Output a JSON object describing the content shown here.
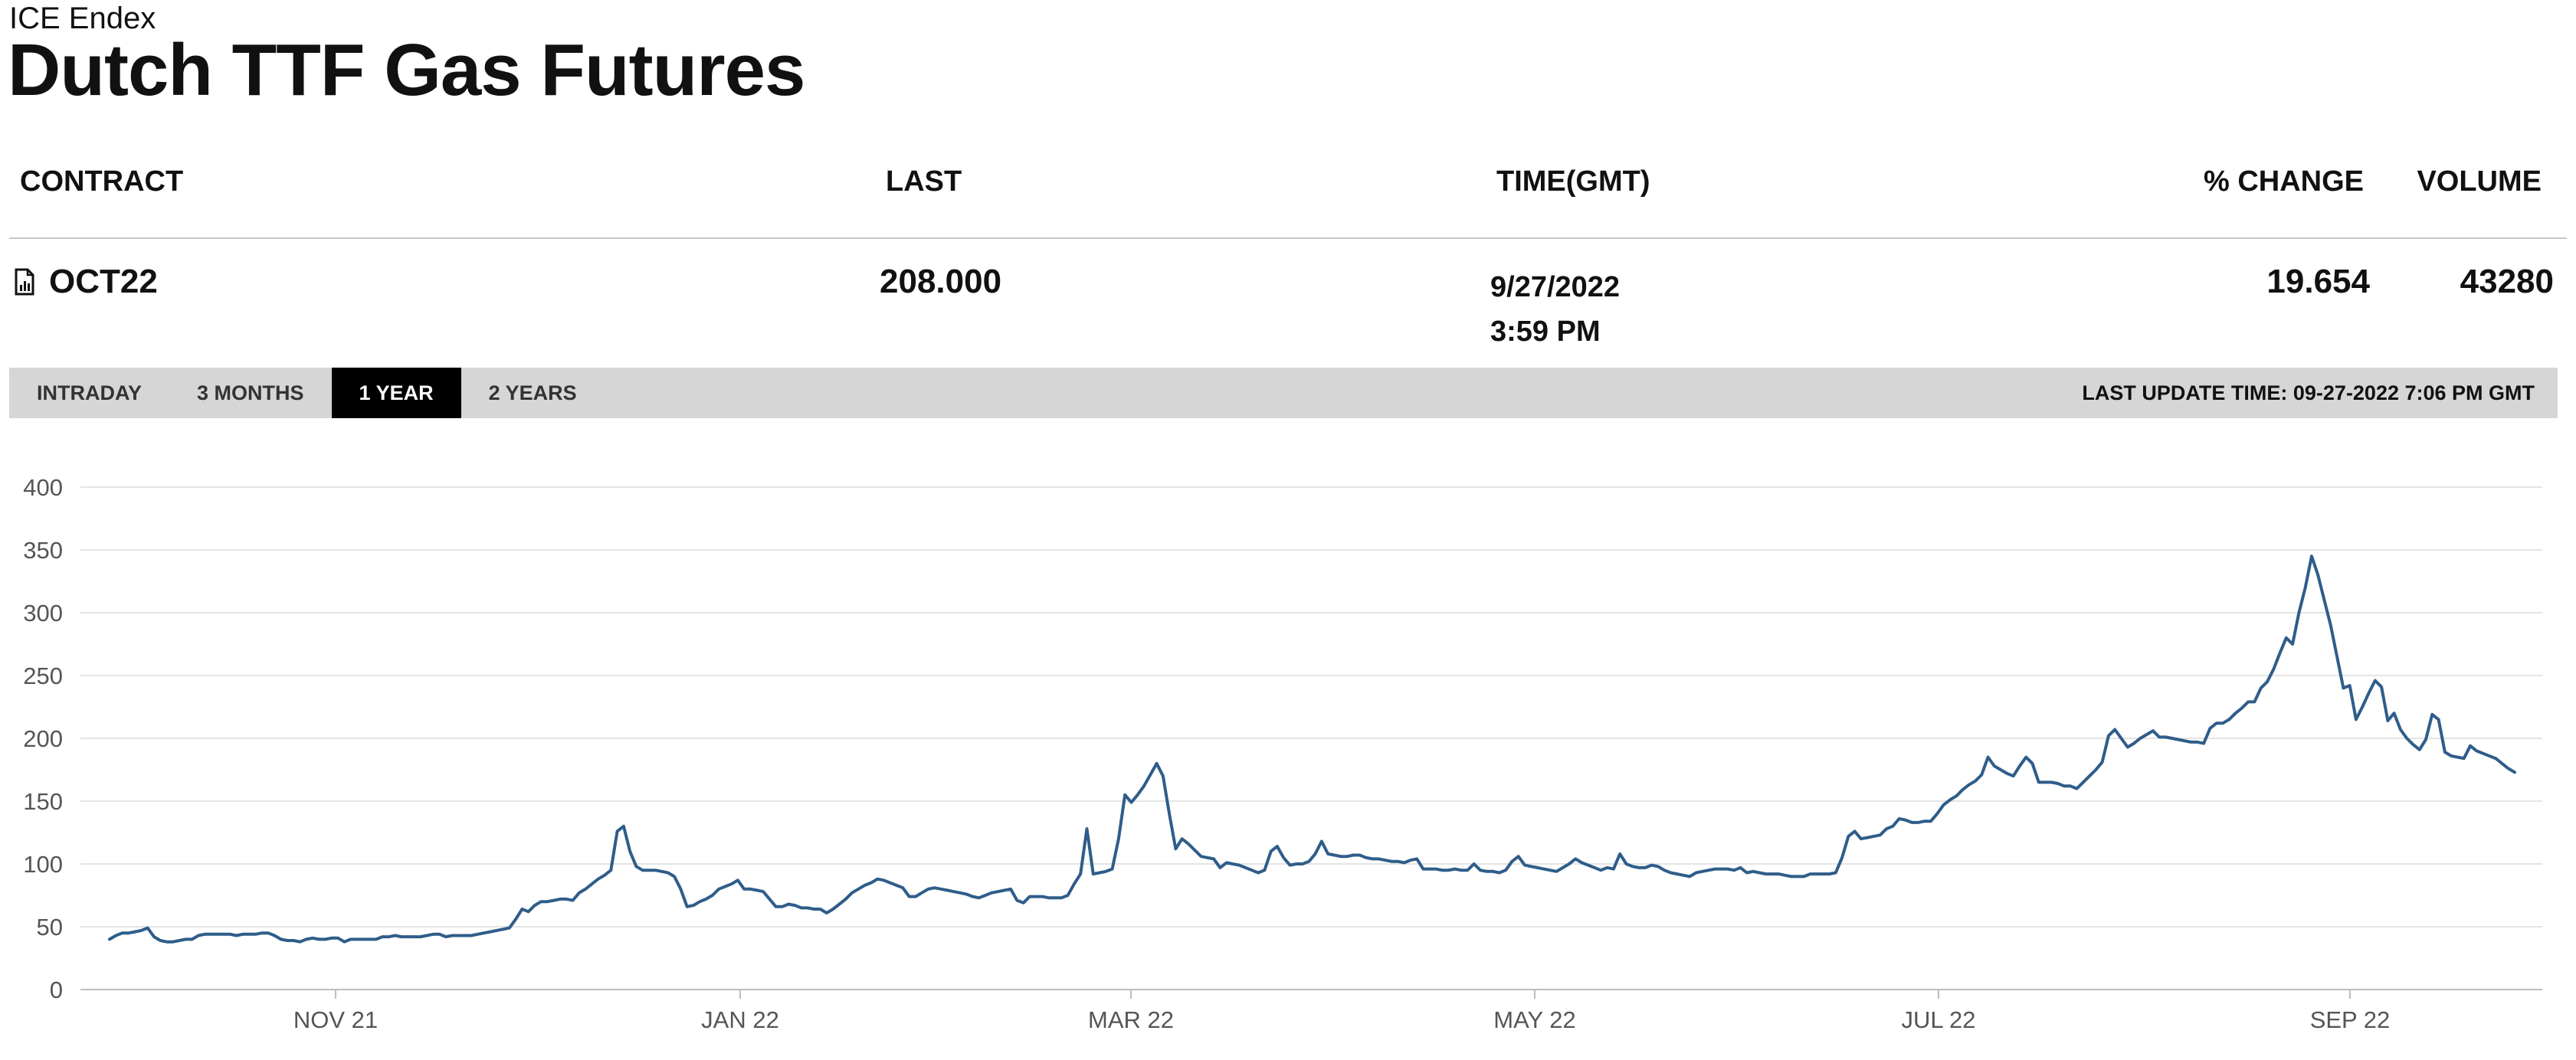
{
  "header": {
    "exchange": "ICE Endex",
    "title": "Dutch TTF Gas Futures"
  },
  "table": {
    "columns": {
      "contract": "CONTRACT",
      "last": "LAST",
      "time": "TIME(GMT)",
      "pct_change": "% CHANGE",
      "volume": "VOLUME"
    },
    "row": {
      "contract_icon": "chart-document-icon",
      "contract": "OCT22",
      "last": "208.000",
      "date": "9/27/2022",
      "time": "3:59 PM",
      "pct_change": "19.654",
      "volume": "43280"
    }
  },
  "tabs": {
    "intraday": "INTRADAY",
    "three_months": "3 MONTHS",
    "one_year": "1 YEAR",
    "two_years": "2 YEARS",
    "active": "1 YEAR"
  },
  "last_update": "LAST UPDATE TIME: 09-27-2022 7:06 PM GMT",
  "colors": {
    "line": "#2f5d8a",
    "grid": "#e4e4e4",
    "tabbar": "#d6d6d6",
    "active_tab": "#000000"
  },
  "chart_data": {
    "type": "line",
    "x_ticks": [
      "NOV 21",
      "JAN 22",
      "MAR 22",
      "MAY 22",
      "JUL 22",
      "SEP 22"
    ],
    "y_ticks": [
      0,
      50,
      100,
      150,
      200,
      250,
      300,
      350,
      400
    ],
    "ylim": [
      0,
      400
    ],
    "grid": true,
    "series": [
      {
        "values": [
          40,
          43,
          45,
          45,
          46,
          47,
          49,
          42,
          39,
          38,
          38,
          39,
          40,
          40,
          43,
          44,
          44,
          44,
          44,
          44,
          43,
          44,
          44,
          44,
          45,
          45,
          43,
          40,
          39,
          39,
          38,
          40,
          41,
          40,
          40,
          41,
          41,
          38,
          40,
          40,
          40,
          40,
          40,
          42,
          42,
          43,
          42,
          42,
          42,
          42,
          43,
          44,
          44,
          42,
          43,
          43,
          43,
          43,
          44,
          45,
          46,
          47,
          48,
          49,
          56,
          64,
          62,
          67,
          70,
          70,
          71,
          72,
          72,
          71,
          77,
          80,
          84,
          88,
          91,
          95,
          126,
          130,
          110,
          98,
          95,
          95,
          95,
          94,
          93,
          90,
          80,
          66,
          67,
          70,
          72,
          75,
          80,
          82,
          84,
          87,
          80,
          80,
          79,
          78,
          72,
          66,
          66,
          68,
          67,
          65,
          65,
          64,
          64,
          61,
          64,
          68,
          72,
          77,
          80,
          83,
          85,
          88,
          87,
          85,
          83,
          81,
          74,
          74,
          77,
          80,
          81,
          80,
          79,
          78,
          77,
          76,
          74,
          73,
          75,
          77,
          78,
          79,
          80,
          71,
          69,
          74,
          74,
          74,
          73,
          73,
          73,
          75,
          84,
          92,
          128,
          92,
          93,
          94,
          96,
          120,
          155,
          149,
          155,
          162,
          171,
          180,
          170,
          140,
          112,
          120,
          116,
          111,
          106,
          105,
          104,
          97,
          101,
          100,
          99,
          97,
          95,
          93,
          95,
          110,
          114,
          105,
          99,
          100,
          100,
          102,
          108,
          118,
          108,
          107,
          106,
          106,
          107,
          107,
          105,
          104,
          104,
          103,
          102,
          102,
          101,
          103,
          104,
          96,
          96,
          96,
          95,
          95,
          96,
          95,
          95,
          100,
          95,
          94,
          94,
          93,
          95,
          102,
          106,
          99,
          98,
          97,
          96,
          95,
          94,
          97,
          100,
          104,
          101,
          99,
          97,
          95,
          97,
          96,
          108,
          100,
          98,
          97,
          97,
          99,
          98,
          95,
          93,
          92,
          91,
          90,
          93,
          94,
          95,
          96,
          96,
          96,
          95,
          97,
          93,
          94,
          93,
          92,
          92,
          92,
          91,
          90,
          90,
          90,
          92,
          92,
          92,
          92,
          93,
          105,
          122,
          126,
          120,
          121,
          122,
          123,
          128,
          130,
          136,
          135,
          133,
          133,
          134,
          134,
          140,
          147,
          151,
          154,
          159,
          163,
          166,
          171,
          185,
          178,
          175,
          172,
          170,
          178,
          185,
          180,
          165,
          165,
          165,
          164,
          162,
          162,
          160,
          165,
          170,
          175,
          181,
          202,
          207,
          200,
          193,
          196,
          200,
          203,
          206,
          201,
          201,
          200,
          199,
          198,
          197,
          197,
          196,
          208,
          212,
          212,
          215,
          220,
          224,
          229,
          229,
          240,
          245,
          255,
          268,
          280,
          275,
          300,
          320,
          345,
          330,
          310,
          290,
          265,
          240,
          242,
          215,
          225,
          236,
          246,
          241,
          214,
          220,
          207,
          200,
          195,
          191,
          199,
          219,
          215,
          189,
          186,
          185,
          184,
          194,
          190,
          188,
          186,
          184,
          180,
          176,
          173
        ]
      }
    ]
  }
}
